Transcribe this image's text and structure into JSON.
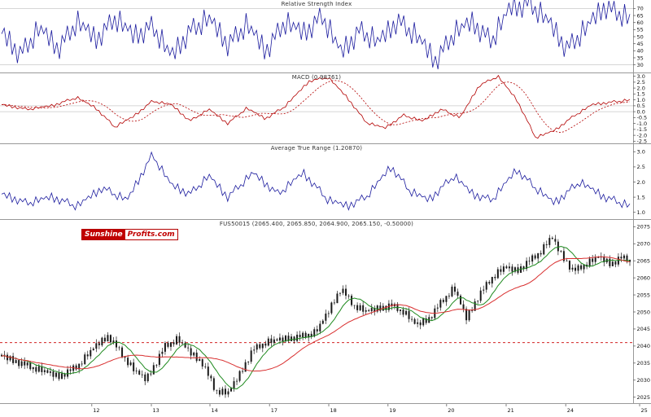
{
  "logo": {
    "sunshine": "Sunshine",
    "profits": "Profits.com"
  },
  "colors": {
    "indicator_line": "#1b1b9e",
    "macd_line": "#b30000",
    "candle": "#1a1a1a",
    "ma_fast": "#1f8a1f",
    "ma_slow": "#d93030",
    "support_line": "#cc0000",
    "axis": "#999999",
    "grid": "#c8c8c8"
  },
  "chart_data": [
    {
      "type": "line",
      "title": "Relative Strength Index",
      "ylim": [
        24,
        76
      ],
      "yticks": [
        {
          "v": 70,
          "label": "70"
        },
        {
          "v": 65,
          "label": "65"
        },
        {
          "v": 60,
          "label": "60"
        },
        {
          "v": 55,
          "label": "55"
        },
        {
          "v": 50,
          "label": "50"
        },
        {
          "v": 45,
          "label": "45"
        },
        {
          "v": 40,
          "label": "40"
        },
        {
          "v": 35,
          "label": "35"
        },
        {
          "v": 30,
          "label": "30"
        }
      ],
      "gridlines": [
        70,
        30
      ],
      "series": [
        {
          "name": "RSI",
          "color": "#1b1b9e",
          "width": 0.8,
          "n": 240,
          "amp": 1.0,
          "jitter": [
            0,
            6,
            -5,
            8,
            -7,
            3,
            -9,
            5,
            -2,
            7,
            -6,
            2,
            -8,
            9,
            -4,
            4
          ],
          "keypoints": [
            [
              0,
              52
            ],
            [
              0.03,
              38
            ],
            [
              0.06,
              55
            ],
            [
              0.09,
              42
            ],
            [
              0.12,
              60
            ],
            [
              0.15,
              48
            ],
            [
              0.18,
              63
            ],
            [
              0.21,
              50
            ],
            [
              0.24,
              58
            ],
            [
              0.27,
              35
            ],
            [
              0.3,
              55
            ],
            [
              0.33,
              62
            ],
            [
              0.36,
              45
            ],
            [
              0.39,
              58
            ],
            [
              0.42,
              40
            ],
            [
              0.45,
              60
            ],
            [
              0.48,
              52
            ],
            [
              0.51,
              65
            ],
            [
              0.54,
              38
            ],
            [
              0.57,
              55
            ],
            [
              0.6,
              45
            ],
            [
              0.63,
              62
            ],
            [
              0.66,
              50
            ],
            [
              0.69,
              33
            ],
            [
              0.72,
              52
            ],
            [
              0.75,
              60
            ],
            [
              0.78,
              47
            ],
            [
              0.81,
              70
            ],
            [
              0.84,
              74
            ],
            [
              0.87,
              60
            ],
            [
              0.9,
              42
            ],
            [
              0.93,
              55
            ],
            [
              0.96,
              72
            ],
            [
              1,
              62
            ]
          ]
        }
      ]
    },
    {
      "type": "line",
      "title": "MACD (0.98761)",
      "ylim": [
        -2.75,
        3.25
      ],
      "yticks": [
        {
          "v": 3,
          "label": "3.0"
        },
        {
          "v": 2.5,
          "label": "2.5"
        },
        {
          "v": 2,
          "label": "2.0"
        },
        {
          "v": 1.5,
          "label": "1.5"
        },
        {
          "v": 1,
          "label": "1.0"
        },
        {
          "v": 0.5,
          "label": "0.5"
        },
        {
          "v": 0,
          "label": "0.0"
        },
        {
          "v": -0.5,
          "label": "-0.5"
        },
        {
          "v": -1,
          "label": "-1.0"
        },
        {
          "v": -1.5,
          "label": "-1.5"
        },
        {
          "v": -2,
          "label": "-2.0"
        },
        {
          "v": -2.5,
          "label": "-2.5"
        }
      ],
      "gridlines": [
        0.5,
        0
      ],
      "series": [
        {
          "name": "MACD",
          "color": "#b30000",
          "width": 0.8,
          "n": 240,
          "amp": 0.06,
          "jitter": [
            0,
            1,
            -1,
            2,
            -2,
            1,
            -2,
            1,
            0,
            2,
            -1,
            0,
            -2,
            2,
            -1,
            1
          ],
          "keypoints": [
            [
              0,
              0.6
            ],
            [
              0.04,
              0.2
            ],
            [
              0.08,
              0.5
            ],
            [
              0.12,
              1.2
            ],
            [
              0.15,
              0.3
            ],
            [
              0.18,
              -1.3
            ],
            [
              0.21,
              -0.4
            ],
            [
              0.24,
              0.9
            ],
            [
              0.27,
              0.6
            ],
            [
              0.3,
              -0.8
            ],
            [
              0.33,
              0.2
            ],
            [
              0.36,
              -1.0
            ],
            [
              0.39,
              0.3
            ],
            [
              0.42,
              -0.6
            ],
            [
              0.45,
              0.4
            ],
            [
              0.49,
              2.6
            ],
            [
              0.52,
              2.9
            ],
            [
              0.55,
              1.2
            ],
            [
              0.58,
              -0.9
            ],
            [
              0.61,
              -1.4
            ],
            [
              0.64,
              -0.3
            ],
            [
              0.67,
              -0.8
            ],
            [
              0.7,
              0.2
            ],
            [
              0.73,
              -0.5
            ],
            [
              0.76,
              2.2
            ],
            [
              0.79,
              3.0
            ],
            [
              0.82,
              1.0
            ],
            [
              0.85,
              -2.2
            ],
            [
              0.88,
              -1.6
            ],
            [
              0.91,
              -0.4
            ],
            [
              0.94,
              0.6
            ],
            [
              0.97,
              0.8
            ],
            [
              1,
              0.99
            ]
          ]
        },
        {
          "name": "Signal",
          "color": "#b30000",
          "width": 0.8,
          "dash": "2,2",
          "window": 12
        }
      ]
    },
    {
      "type": "line",
      "title": "Average True Range (1.20870)",
      "ylim": [
        0.75,
        3.25
      ],
      "yticks": [
        {
          "v": 3,
          "label": "3.0"
        },
        {
          "v": 2.5,
          "label": "2.5"
        },
        {
          "v": 2,
          "label": "2.0"
        },
        {
          "v": 1.5,
          "label": "1.5"
        },
        {
          "v": 1,
          "label": "1.0"
        }
      ],
      "gridlines": [],
      "series": [
        {
          "name": "ATR",
          "color": "#1b1b9e",
          "width": 0.8,
          "n": 240,
          "amp": 0.07,
          "jitter": [
            0,
            1,
            -1,
            2,
            -2,
            1,
            -2,
            1,
            0,
            2,
            -1,
            0,
            -2,
            2,
            -1,
            1
          ],
          "keypoints": [
            [
              0,
              1.6
            ],
            [
              0.04,
              1.3
            ],
            [
              0.08,
              1.5
            ],
            [
              0.12,
              1.2
            ],
            [
              0.16,
              1.8
            ],
            [
              0.2,
              1.4
            ],
            [
              0.24,
              2.9
            ],
            [
              0.27,
              1.9
            ],
            [
              0.3,
              1.6
            ],
            [
              0.33,
              2.2
            ],
            [
              0.36,
              1.5
            ],
            [
              0.4,
              2.3
            ],
            [
              0.44,
              1.6
            ],
            [
              0.48,
              2.3
            ],
            [
              0.52,
              1.4
            ],
            [
              0.55,
              1.2
            ],
            [
              0.58,
              1.5
            ],
            [
              0.62,
              2.5
            ],
            [
              0.65,
              1.7
            ],
            [
              0.68,
              1.4
            ],
            [
              0.72,
              2.2
            ],
            [
              0.75,
              1.6
            ],
            [
              0.78,
              1.4
            ],
            [
              0.82,
              2.4
            ],
            [
              0.85,
              1.8
            ],
            [
              0.88,
              1.3
            ],
            [
              0.92,
              2.0
            ],
            [
              0.96,
              1.5
            ],
            [
              1,
              1.21
            ]
          ]
        }
      ]
    },
    {
      "type": "candlestick",
      "title": "FUS50015 (2065.400, 2065.850, 2064.900, 2065.150, -0.50000)",
      "ylim": [
        2023,
        2077
      ],
      "yticks": [
        {
          "v": 2075,
          "label": "2075"
        },
        {
          "v": 2070,
          "label": "2070"
        },
        {
          "v": 2065,
          "label": "2065"
        },
        {
          "v": 2060,
          "label": "2060"
        },
        {
          "v": 2055,
          "label": "2055"
        },
        {
          "v": 2050,
          "label": "2050"
        },
        {
          "v": 2045,
          "label": "2045"
        },
        {
          "v": 2040,
          "label": "2040"
        },
        {
          "v": 2035,
          "label": "2035"
        },
        {
          "v": 2030,
          "label": "2030"
        },
        {
          "v": 2025,
          "label": "2025"
        }
      ],
      "gridlines": [],
      "hline": {
        "v": 2041,
        "color": "#cc0000",
        "dash": "3,3"
      },
      "candles": {
        "n": 220,
        "amp": 0.8,
        "wick": 0.9,
        "color": "#1a1a1a",
        "jitter": [
          0,
          0.9,
          -0.7,
          1.2,
          -1.0,
          0.5,
          -1.3,
          0.8,
          -0.3,
          1.1,
          -0.9,
          0.2,
          -1.1,
          1.3,
          -0.5,
          0.6
        ],
        "keypoints": [
          [
            0,
            2037
          ],
          [
            0.03,
            2035
          ],
          [
            0.06,
            2033
          ],
          [
            0.09,
            2031
          ],
          [
            0.12,
            2034
          ],
          [
            0.15,
            2040
          ],
          [
            0.17,
            2043
          ],
          [
            0.19,
            2038
          ],
          [
            0.21,
            2033
          ],
          [
            0.23,
            2030
          ],
          [
            0.26,
            2040
          ],
          [
            0.28,
            2042
          ],
          [
            0.3,
            2038
          ],
          [
            0.32,
            2035
          ],
          [
            0.34,
            2027
          ],
          [
            0.36,
            2026
          ],
          [
            0.38,
            2032
          ],
          [
            0.4,
            2039
          ],
          [
            0.42,
            2041
          ],
          [
            0.45,
            2042
          ],
          [
            0.48,
            2043
          ],
          [
            0.5,
            2044
          ],
          [
            0.52,
            2050
          ],
          [
            0.54,
            2057
          ],
          [
            0.56,
            2052
          ],
          [
            0.58,
            2050
          ],
          [
            0.6,
            2051
          ],
          [
            0.62,
            2052
          ],
          [
            0.64,
            2050
          ],
          [
            0.66,
            2046
          ],
          [
            0.68,
            2048
          ],
          [
            0.7,
            2053
          ],
          [
            0.72,
            2057
          ],
          [
            0.74,
            2048
          ],
          [
            0.76,
            2055
          ],
          [
            0.78,
            2060
          ],
          [
            0.8,
            2063
          ],
          [
            0.82,
            2062
          ],
          [
            0.84,
            2065
          ],
          [
            0.86,
            2068
          ],
          [
            0.875,
            2072
          ],
          [
            0.89,
            2067
          ],
          [
            0.91,
            2062
          ],
          [
            0.93,
            2064
          ],
          [
            0.95,
            2066
          ],
          [
            0.97,
            2064
          ],
          [
            0.985,
            2066
          ],
          [
            1,
            2065.15
          ]
        ]
      },
      "overlays": [
        {
          "name": "ma-fast",
          "color": "#1f8a1f",
          "window": 9
        },
        {
          "name": "ma-slow",
          "color": "#d93030",
          "window": 25
        }
      ],
      "xticks": [
        {
          "pos": 0.141,
          "label": "12"
        },
        {
          "pos": 0.2325,
          "label": "13"
        },
        {
          "pos": 0.3225,
          "label": "14"
        },
        {
          "pos": 0.414,
          "label": "17"
        },
        {
          "pos": 0.505,
          "label": "18"
        },
        {
          "pos": 0.596,
          "label": "19"
        },
        {
          "pos": 0.686,
          "label": "20"
        },
        {
          "pos": 0.7775,
          "label": "21"
        },
        {
          "pos": 0.869,
          "label": "24"
        },
        {
          "pos": 0.9825,
          "label": "25"
        }
      ]
    }
  ]
}
